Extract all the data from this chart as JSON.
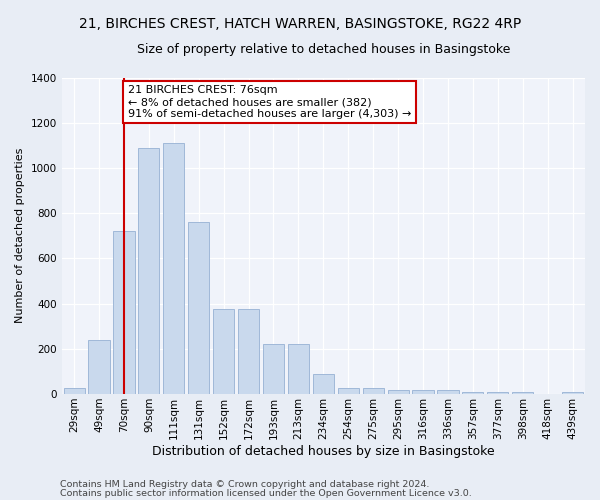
{
  "title1": "21, BIRCHES CREST, HATCH WARREN, BASINGSTOKE, RG22 4RP",
  "title2": "Size of property relative to detached houses in Basingstoke",
  "xlabel": "Distribution of detached houses by size in Basingstoke",
  "ylabel": "Number of detached properties",
  "categories": [
    "29sqm",
    "49sqm",
    "70sqm",
    "90sqm",
    "111sqm",
    "131sqm",
    "152sqm",
    "172sqm",
    "193sqm",
    "213sqm",
    "234sqm",
    "254sqm",
    "275sqm",
    "295sqm",
    "316sqm",
    "336sqm",
    "357sqm",
    "377sqm",
    "398sqm",
    "418sqm",
    "439sqm"
  ],
  "values": [
    28,
    240,
    720,
    1090,
    1110,
    760,
    375,
    375,
    220,
    220,
    90,
    28,
    28,
    18,
    18,
    18,
    10,
    10,
    10,
    0,
    10
  ],
  "bar_color": "#c9d9ed",
  "bar_edge_color": "#a0b8d8",
  "vline_x_index": 2,
  "vline_color": "#cc0000",
  "annotation_text": "21 BIRCHES CREST: 76sqm\n← 8% of detached houses are smaller (382)\n91% of semi-detached houses are larger (4,303) →",
  "annotation_box_color": "#ffffff",
  "annotation_box_edge": "#cc0000",
  "footer1": "Contains HM Land Registry data © Crown copyright and database right 2024.",
  "footer2": "Contains public sector information licensed under the Open Government Licence v3.0.",
  "ylim": [
    0,
    1400
  ],
  "yticks": [
    0,
    200,
    400,
    600,
    800,
    1000,
    1200,
    1400
  ],
  "bg_color": "#e8edf5",
  "plot_bg_color": "#f0f3fa",
  "grid_color": "#ffffff",
  "title1_fontsize": 10,
  "title2_fontsize": 9,
  "xlabel_fontsize": 9,
  "ylabel_fontsize": 8,
  "tick_fontsize": 7.5,
  "footer_fontsize": 6.8,
  "ann_fontsize": 8
}
